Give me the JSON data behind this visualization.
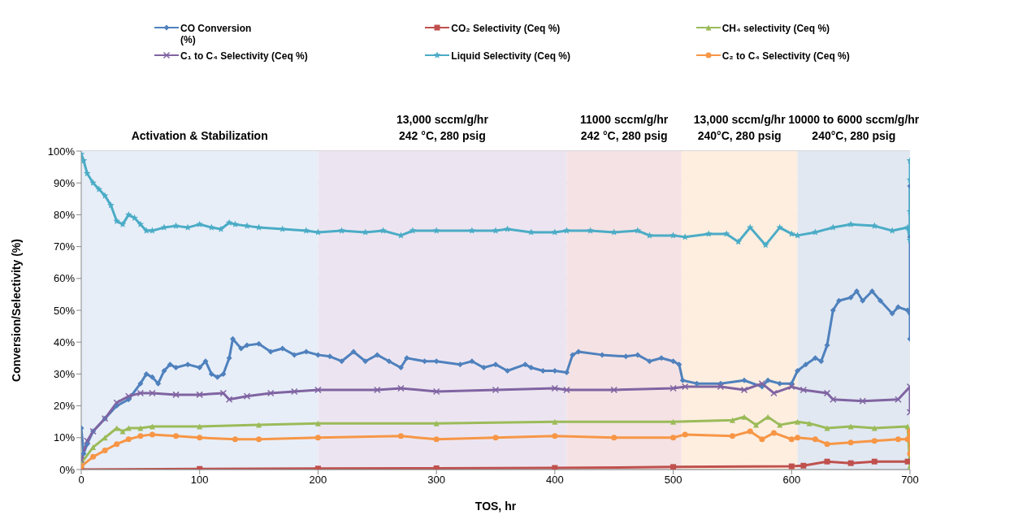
{
  "chart_data": {
    "type": "line",
    "xlabel": "TOS, hr",
    "ylabel": "Conversion/Selectivity (%)",
    "xlim": [
      0,
      700
    ],
    "xticks": [
      0,
      100,
      200,
      300,
      400,
      500,
      600,
      700
    ],
    "ylim": [
      0,
      100
    ],
    "yticks": [
      {
        "value": 0,
        "label": "0%"
      },
      {
        "value": 10,
        "label": "10%"
      },
      {
        "value": 20,
        "label": "20%"
      },
      {
        "value": 30,
        "label": "30%"
      },
      {
        "value": 40,
        "label": "40%"
      },
      {
        "value": 50,
        "label": "50%"
      },
      {
        "value": 60,
        "label": "60%"
      },
      {
        "value": 70,
        "label": "70%"
      },
      {
        "value": 80,
        "label": "80%"
      },
      {
        "value": 90,
        "label": "90%"
      },
      {
        "value": 100,
        "label": "100%"
      }
    ],
    "grid": "y",
    "legend": "top",
    "bands": [
      {
        "axis": "x",
        "from": 0,
        "to": 200,
        "label": "Activation & Stabilization",
        "color": "#e7eef8"
      },
      {
        "axis": "x",
        "from": 200,
        "to": 410,
        "label": "13,000 sccm/g/hr\n242 °C, 280 psig",
        "color": "#ece5f1"
      },
      {
        "axis": "x",
        "from": 410,
        "to": 507,
        "label": "11000 sccm/g/hr\n242 °C, 280 psig",
        "color": "#f4e2e4"
      },
      {
        "axis": "x",
        "from": 507,
        "to": 605,
        "label": "13,000 sccm/g/hr\n240°C, 280 psig",
        "color": "#fdeee0"
      },
      {
        "axis": "x",
        "from": 605,
        "to": 700,
        "label": "10000 to 6000 sccm/g/hr\n240°C, 280 psig",
        "color": "#e1e8f2"
      }
    ],
    "series": [
      {
        "name": "CO Conversion\n(%)",
        "color": "#4f81bd",
        "marker": "diamond",
        "x": [
          0,
          2,
          5,
          10,
          20,
          30,
          40,
          50,
          55,
          60,
          65,
          70,
          75,
          80,
          90,
          100,
          105,
          110,
          115,
          120,
          125,
          128,
          135,
          140,
          150,
          160,
          170,
          180,
          190,
          200,
          210,
          220,
          230,
          240,
          250,
          260,
          270,
          275,
          290,
          300,
          320,
          330,
          340,
          350,
          360,
          375,
          380,
          390,
          400,
          410,
          415,
          420,
          440,
          460,
          470,
          480,
          490,
          500,
          505,
          508,
          520,
          540,
          560,
          575,
          580,
          590,
          600,
          605,
          612,
          620,
          625,
          630,
          635,
          640,
          650,
          655,
          660,
          668,
          675,
          685,
          690,
          698,
          700,
          700,
          700,
          700
        ],
        "values": [
          13,
          5,
          8,
          12,
          16,
          20,
          22,
          27,
          30,
          29,
          27,
          31,
          33,
          32,
          33,
          32,
          34,
          30,
          29,
          30,
          35,
          41,
          38,
          39,
          39.5,
          37,
          38,
          36,
          37,
          36,
          35.5,
          34,
          37,
          34,
          36,
          34,
          32,
          35,
          34,
          34,
          33,
          34,
          32,
          33,
          31,
          33,
          32,
          31,
          31,
          30.5,
          36,
          37,
          36,
          35.5,
          36,
          34,
          35,
          34,
          33,
          28,
          27,
          27,
          28,
          26,
          28,
          27,
          27,
          31,
          33,
          35,
          34,
          39,
          50,
          53,
          54,
          56,
          53,
          56,
          53,
          49,
          51,
          50,
          49,
          89,
          73,
          41
        ]
      },
      {
        "name": "CO₂ Selectivity (Ceq %)",
        "color": "#c0504d",
        "marker": "square",
        "x": [
          0,
          100,
          200,
          300,
          400,
          500,
          600,
          610,
          630,
          650,
          670,
          698
        ],
        "values": [
          0,
          0.2,
          0.3,
          0.4,
          0.5,
          0.8,
          1,
          1.2,
          2.5,
          2,
          2.5,
          2.5
        ]
      },
      {
        "name": "CH₄  selectivity (Ceq %)",
        "color": "#9bbb59",
        "marker": "triangle",
        "x": [
          0,
          10,
          20,
          30,
          35,
          40,
          50,
          60,
          100,
          150,
          200,
          300,
          400,
          500,
          550,
          560,
          570,
          580,
          590,
          605,
          615,
          630,
          650,
          670,
          698,
          700
        ],
        "values": [
          2,
          7,
          10,
          13,
          12,
          13,
          13,
          13.5,
          13.5,
          14,
          14.5,
          14.5,
          15,
          15,
          15.5,
          16.5,
          14,
          16.5,
          14,
          15,
          14.5,
          13,
          13.5,
          13,
          13.5,
          1
        ]
      },
      {
        "name": "C₁ to C₄ Selectivity (Ceq %)",
        "color": "#8064a2",
        "marker": "cross",
        "x": [
          0,
          5,
          10,
          20,
          30,
          40,
          50,
          60,
          80,
          100,
          120,
          125,
          140,
          160,
          180,
          200,
          250,
          270,
          300,
          350,
          400,
          410,
          450,
          500,
          510,
          540,
          560,
          575,
          585,
          600,
          610,
          630,
          635,
          660,
          690,
          700,
          700
        ],
        "values": [
          3,
          9,
          12,
          16,
          21,
          23,
          24,
          24,
          23.5,
          23.5,
          24,
          22,
          23,
          24,
          24.5,
          25,
          25,
          25.5,
          24.5,
          25,
          25.5,
          25,
          25,
          25.5,
          26,
          26,
          25,
          27,
          24,
          26,
          25,
          24,
          22,
          21.5,
          22,
          26,
          18
        ]
      },
      {
        "name": "Liquid Selectivity (Ceq %)",
        "color": "#4bacc6",
        "marker": "star",
        "x": [
          0,
          2,
          5,
          10,
          15,
          20,
          25,
          30,
          35,
          40,
          45,
          50,
          55,
          60,
          70,
          80,
          90,
          100,
          110,
          118,
          125,
          130,
          140,
          150,
          170,
          190,
          200,
          220,
          240,
          255,
          270,
          280,
          300,
          330,
          350,
          360,
          380,
          400,
          410,
          430,
          450,
          470,
          480,
          500,
          510,
          530,
          545,
          555,
          565,
          578,
          590,
          600,
          605,
          620,
          635,
          650,
          670,
          685,
          698,
          700,
          700,
          700,
          700
        ],
        "values": [
          99,
          97,
          93,
          90,
          88,
          86,
          83,
          78,
          77,
          80,
          79,
          77,
          75,
          75,
          76,
          76.5,
          76,
          77,
          76,
          75.5,
          77.5,
          77,
          76.5,
          76,
          75.5,
          75,
          74.5,
          75,
          74.5,
          75,
          73.5,
          75,
          75,
          75,
          75,
          75.5,
          74.5,
          74.5,
          75,
          75,
          74.5,
          75,
          73.5,
          73.5,
          73,
          74,
          74,
          71.5,
          76,
          70.5,
          76,
          74,
          73.5,
          74.5,
          76,
          77,
          76.5,
          75,
          76,
          72,
          81,
          91,
          97
        ]
      },
      {
        "name": "C₂ to C₄ Selectivity (Ceq %)",
        "color": "#f79646",
        "marker": "circle",
        "x": [
          0,
          10,
          20,
          30,
          40,
          50,
          60,
          80,
          100,
          130,
          150,
          200,
          270,
          300,
          350,
          400,
          450,
          500,
          510,
          550,
          565,
          575,
          585,
          600,
          605,
          620,
          630,
          650,
          670,
          690,
          698,
          700,
          700
        ],
        "values": [
          1,
          4,
          6,
          8,
          9.5,
          10.5,
          11,
          10.5,
          10,
          9.5,
          9.5,
          10,
          10.5,
          9.5,
          10,
          10.5,
          10,
          10,
          11,
          10.5,
          12,
          9.5,
          11.5,
          9.5,
          10,
          9.5,
          8,
          8.5,
          9,
          9.5,
          9.5,
          12,
          5
        ]
      }
    ]
  }
}
